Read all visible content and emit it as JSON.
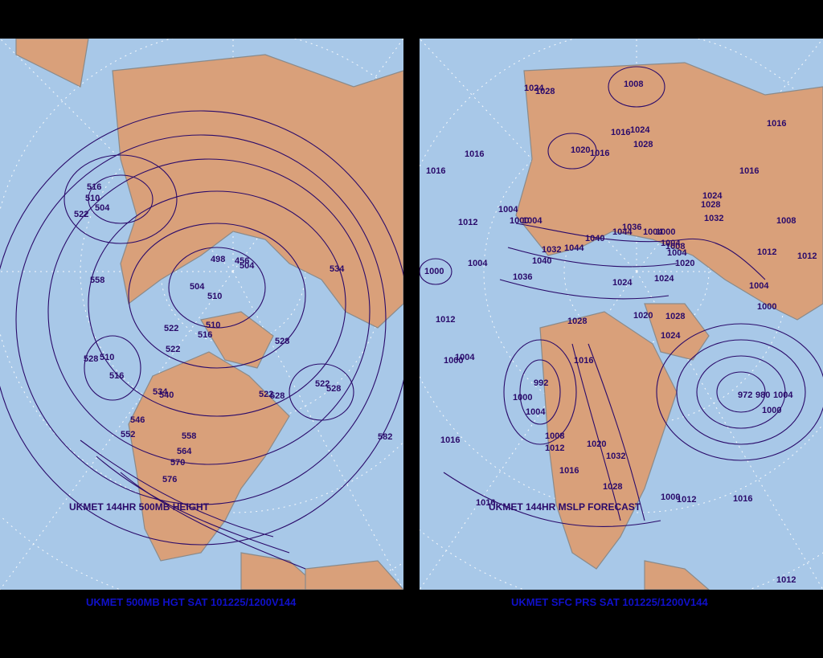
{
  "panels": {
    "left": {
      "map_caption": "UKMET 144HR 500MB HEIGHT",
      "footer": "UKMET 500MB HGT SAT 101225/1200V144",
      "contour_labels": [
        "516",
        "510",
        "504",
        "522",
        "558",
        "498",
        "456",
        "504",
        "504",
        "510",
        "534",
        "522",
        "510",
        "516",
        "522",
        "528",
        "510",
        "516",
        "528",
        "534",
        "540",
        "522",
        "528",
        "522",
        "528",
        "546",
        "552",
        "558",
        "564",
        "570",
        "576",
        "582"
      ]
    },
    "right": {
      "map_caption": "UKMET 144HR MSLP FORECAST",
      "footer": "UKMET SFC PRS SAT 101225/1200V144",
      "contour_labels": [
        "1024",
        "1028",
        "1008",
        "1016",
        "1024",
        "1028",
        "1016",
        "1020",
        "1016",
        "1016",
        "1016",
        "1016",
        "1024",
        "1028",
        "1032",
        "1004",
        "1008",
        "1012",
        "1000",
        "1004",
        "1004",
        "1000",
        "1040",
        "1044",
        "1036",
        "1032",
        "1044",
        "1040",
        "1036",
        "1004",
        "1008",
        "1004",
        "1012",
        "1020",
        "1024",
        "1012",
        "1000",
        "1004",
        "1012",
        "1028",
        "1024",
        "1004",
        "1000",
        "1028",
        "1024",
        "1020",
        "1016",
        "1004",
        "1000",
        "992",
        "1000",
        "1004",
        "1016",
        "972",
        "980",
        "1000",
        "1004",
        "1008",
        "1012",
        "1020",
        "1032",
        "1016",
        "1028",
        "1000",
        "1012",
        "1016",
        "1016",
        "1012"
      ]
    }
  },
  "colors": {
    "ocean": "#a8c8e8",
    "land": "#d9a07a",
    "contour": "#2a0a6a",
    "footer_text": "#1010c8",
    "background": "#000000"
  }
}
